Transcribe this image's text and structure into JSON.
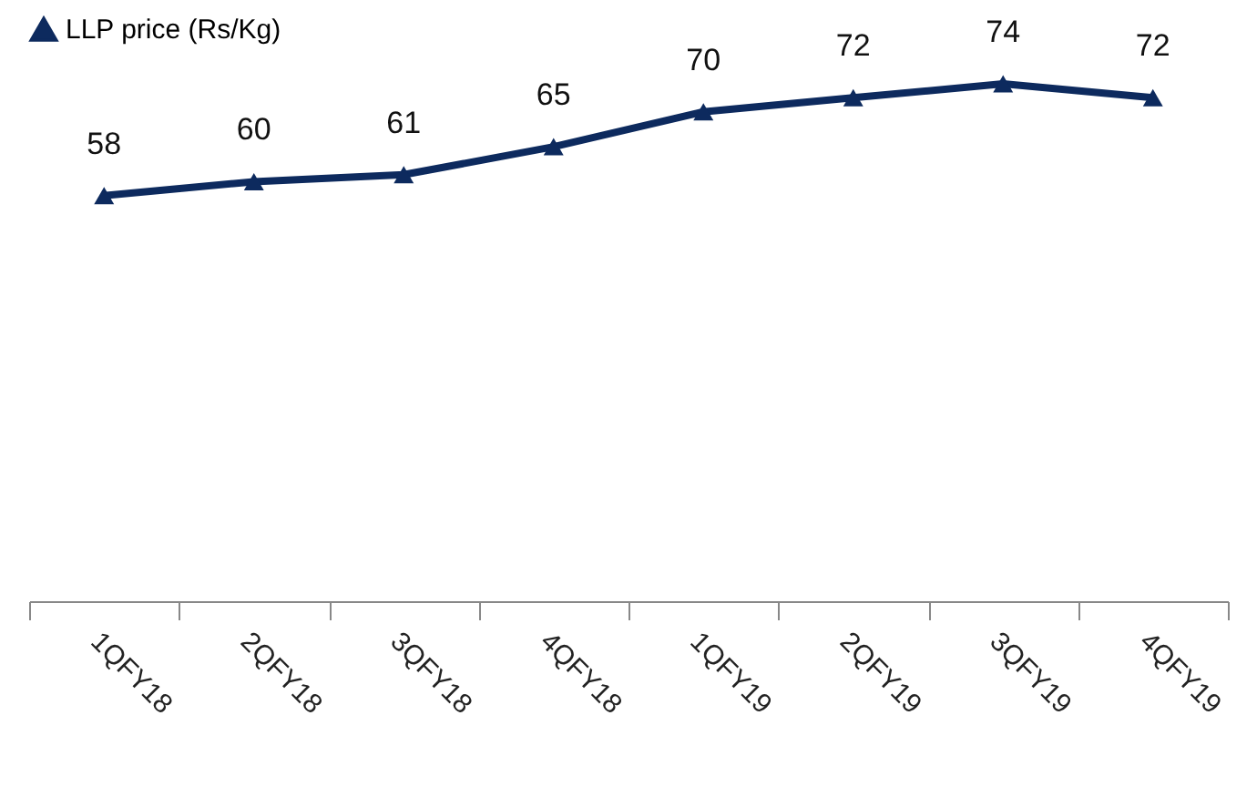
{
  "chart_data": {
    "type": "line",
    "categories": [
      "1QFY18",
      "2QFY18",
      "3QFY18",
      "4QFY18",
      "1QFY19",
      "2QFY19",
      "3QFY19",
      "4QFY19"
    ],
    "series": [
      {
        "name": "LLP price (Rs/Kg)",
        "color": "#0d2a5e",
        "values": [
          58,
          60,
          61,
          65,
          70,
          72,
          74,
          72
        ]
      }
    ],
    "tick_labels": "x",
    "data_labels": true,
    "marker": "triangle",
    "line_style": "solid",
    "legend": "top",
    "grid": false
  }
}
